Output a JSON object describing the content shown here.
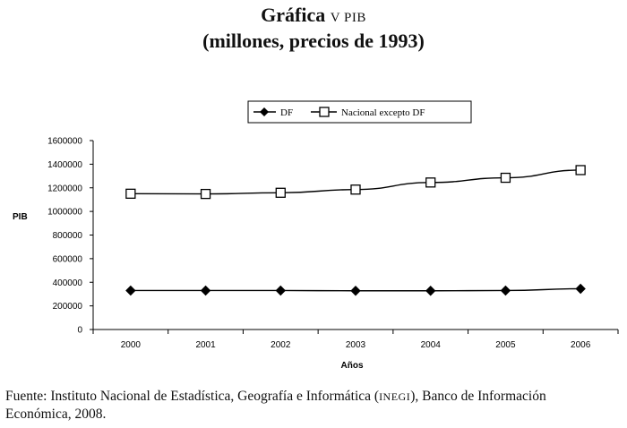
{
  "title": {
    "main": "Gráfica",
    "label": "V PIB",
    "subtitle": "(millones, precios de 1993)"
  },
  "chart_data": {
    "type": "line",
    "categories": [
      "2000",
      "2001",
      "2002",
      "2003",
      "2004",
      "2005",
      "2006"
    ],
    "series": [
      {
        "name": "DF",
        "marker": "diamond",
        "color": "#000000",
        "values": [
          330000,
          330000,
          330000,
          328000,
          328000,
          330000,
          345000
        ]
      },
      {
        "name": "Nacional excepto DF",
        "marker": "square",
        "color": "#000000",
        "values": [
          1150000,
          1148000,
          1158000,
          1185000,
          1245000,
          1285000,
          1350000
        ]
      }
    ],
    "xlabel": "Años",
    "ylabel": "PIB",
    "ylim": [
      0,
      1600000
    ],
    "yticks": [
      "0",
      "200000",
      "400000",
      "600000",
      "800000",
      "1000000",
      "1200000",
      "1400000",
      "1600000"
    ],
    "grid": false,
    "legend": "top"
  },
  "source": {
    "line1_a": "Fuente: Instituto Nacional de Estadística, Geografía e Informática (",
    "line1_sc": "INEGI",
    "line1_b": "), Banco de Información",
    "line2": "Económica, 2008."
  }
}
